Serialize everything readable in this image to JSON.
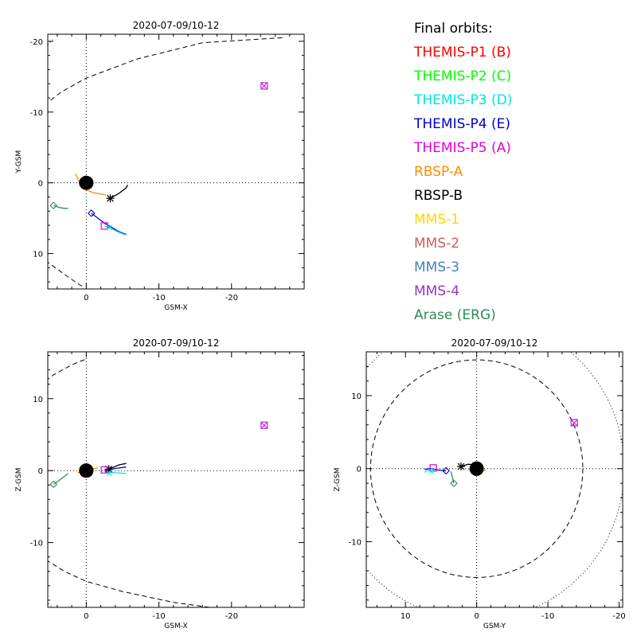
{
  "colors": {
    "axis": "#000000",
    "earth": "#000000",
    "magnetopause": "#000000",
    "legend_title": "#000000"
  },
  "legend": {
    "title": "Final orbits:",
    "items": [
      {
        "label": "THEMIS-P1 (B)",
        "color": "#ff0000"
      },
      {
        "label": "THEMIS-P2 (C)",
        "color": "#00ff00"
      },
      {
        "label": "THEMIS-P3 (D)",
        "color": "#00e5e5"
      },
      {
        "label": "THEMIS-P4 (E)",
        "color": "#0000cc"
      },
      {
        "label": "THEMIS-P5 (A)",
        "color": "#e000e0"
      },
      {
        "label": "RBSP-A",
        "color": "#ff8c00"
      },
      {
        "label": "RBSP-B",
        "color": "#000000"
      },
      {
        "label": "MMS-1",
        "color": "#ffd700"
      },
      {
        "label": "MMS-2",
        "color": "#cd5c5c"
      },
      {
        "label": "MMS-3",
        "color": "#4682b4"
      },
      {
        "label": "MMS-4",
        "color": "#9932cc"
      },
      {
        "label": "Arase (ERG)",
        "color": "#2e8b57"
      }
    ]
  },
  "chart_data": [
    {
      "type": "scatter",
      "title": "2020-07-09/10-12",
      "xlabel": "GSM-X",
      "ylabel": "Y-GSM",
      "xlim": [
        5.3,
        -30
      ],
      "ylim": [
        15,
        -21
      ],
      "xticks": [
        0,
        -10,
        -20
      ],
      "yticks": [
        10,
        0,
        -10,
        -20
      ],
      "earth": {
        "x": 0,
        "y": 0,
        "r": 1
      },
      "magnetopause": [
        [
          -27,
          -20.5
        ],
        [
          -16,
          -19.8
        ],
        [
          -7,
          -17.5
        ],
        [
          0,
          -14.8
        ],
        [
          3.5,
          -12.8
        ],
        [
          5.5,
          -11.2
        ],
        [
          6.5,
          -10.4
        ]
      ],
      "magnetopause_lower": [
        [
          6.5,
          10.3
        ],
        [
          4.8,
          11.6
        ],
        [
          2.5,
          13.3
        ],
        [
          0.5,
          14.7
        ]
      ],
      "bowshock": [
        [
          6.5,
          -18.2
        ],
        [
          5.4,
          -19.4
        ],
        [
          4.4,
          -20.5
        ]
      ],
      "tracks": [
        {
          "spacecraft": "RBSP-A",
          "points": [
            [
              1.5,
              -1.3
            ],
            [
              0.5,
              0.8
            ],
            [
              -1,
              1.4
            ],
            [
              -2.7,
              1.7
            ]
          ]
        },
        {
          "spacecraft": "RBSP-B",
          "points": [
            [
              -3.3,
              2.2
            ],
            [
              -4.5,
              1.5
            ],
            [
              -5.5,
              0.7
            ],
            [
              -5.7,
              0.3
            ]
          ]
        },
        {
          "spacecraft": "THEMIS-P4 (E)",
          "points": [
            [
              -0.7,
              4.3
            ],
            [
              -2.5,
              5.7
            ],
            [
              -4.5,
              6.9
            ],
            [
              -5.5,
              7.3
            ]
          ]
        },
        {
          "spacecraft": "THEMIS-P3 (D)",
          "points": [
            [
              -2.5,
              6.1
            ],
            [
              -3.5,
              6.5
            ],
            [
              -4.5,
              7
            ],
            [
              -5.5,
              7.4
            ]
          ]
        },
        {
          "spacecraft": "Arase (ERG)",
          "points": [
            [
              4.5,
              3.2
            ],
            [
              3.7,
              3.5
            ],
            [
              3,
              3.6
            ],
            [
              2.5,
              3.6
            ]
          ]
        }
      ],
      "points": [
        {
          "spacecraft": "RBSP-B",
          "marker": "asterisk",
          "x": -3.3,
          "y": 2.2
        },
        {
          "spacecraft": "THEMIS-P4 (E)",
          "marker": "diamond",
          "x": -0.7,
          "y": 4.3
        },
        {
          "spacecraft": "THEMIS-P5 (A)",
          "marker": "square",
          "x": -2.5,
          "y": 6.1
        },
        {
          "spacecraft": "THEMIS-P3 (D)",
          "marker": "cross",
          "x": -3.2,
          "y": 6.3
        },
        {
          "spacecraft": "Arase (ERG)",
          "marker": "diamond",
          "x": 4.5,
          "y": 3.2
        },
        {
          "spacecraft": "MMS-4",
          "marker": "square",
          "x": -24.5,
          "y": -13.7
        },
        {
          "spacecraft": "THEMIS-P5 (A)",
          "marker": "cross",
          "x": -24.5,
          "y": -13.7
        }
      ]
    },
    {
      "type": "scatter",
      "title": "2020-07-09/10-12",
      "xlabel": "GSM-X",
      "ylabel": "Z-GSM",
      "xlim": [
        5.3,
        -30
      ],
      "ylim": [
        -19,
        16.5
      ],
      "xticks": [
        0,
        -10,
        -20
      ],
      "yticks": [
        10,
        0,
        -10
      ],
      "earth": {
        "x": 0,
        "y": 0,
        "r": 1
      },
      "magnetopause": [
        [
          6.5,
          11.8
        ],
        [
          4.5,
          13.3
        ],
        [
          2,
          14.7
        ],
        [
          0,
          15.5
        ]
      ],
      "magnetopause_lower": [
        [
          6.5,
          -11.8
        ],
        [
          3,
          -14
        ],
        [
          0,
          -15.4
        ],
        [
          -5,
          -16.8
        ],
        [
          -12,
          -18.3
        ],
        [
          -17,
          -19
        ]
      ],
      "bowshock": [
        [
          6.3,
          -17.7
        ],
        [
          5.4,
          -18.3
        ],
        [
          4.6,
          -19
        ]
      ],
      "tracks": [
        {
          "spacecraft": "RBSP-A",
          "points": [
            [
              1.2,
              -0.3
            ],
            [
              -0.5,
              0.1
            ],
            [
              -1.6,
              0.4
            ]
          ]
        },
        {
          "spacecraft": "RBSP-B",
          "points": [
            [
              -3.1,
              0.2
            ],
            [
              -4.5,
              0.8
            ],
            [
              -5.5,
              1
            ]
          ]
        },
        {
          "spacecraft": "THEMIS-P4 (E)",
          "points": [
            [
              -2.5,
              0
            ],
            [
              -4,
              0.3
            ],
            [
              -5.5,
              0.5
            ]
          ]
        },
        {
          "spacecraft": "THEMIS-P3 (D)",
          "points": [
            [
              -2.5,
              -0.1
            ],
            [
              -4,
              -0.3
            ],
            [
              -5.5,
              -0.4
            ]
          ]
        },
        {
          "spacecraft": "Arase (ERG)",
          "points": [
            [
              4.5,
              -1.9
            ],
            [
              3.5,
              -1.2
            ],
            [
              2.5,
              -0.4
            ]
          ]
        }
      ],
      "points": [
        {
          "spacecraft": "RBSP-B",
          "marker": "asterisk",
          "x": -3.1,
          "y": 0.2
        },
        {
          "spacecraft": "THEMIS-P5 (A)",
          "marker": "square",
          "x": -2.5,
          "y": 0.1
        },
        {
          "spacecraft": "THEMIS-P3 (D)",
          "marker": "cross",
          "x": -3.2,
          "y": -0.4
        },
        {
          "spacecraft": "Arase (ERG)",
          "marker": "diamond",
          "x": 4.5,
          "y": -1.9
        },
        {
          "spacecraft": "MMS-4",
          "marker": "square",
          "x": -24.5,
          "y": 6.3
        },
        {
          "spacecraft": "THEMIS-P5 (A)",
          "marker": "cross",
          "x": -24.5,
          "y": 6.3
        }
      ]
    },
    {
      "type": "scatter",
      "title": "2020-07-09/10-12",
      "xlabel": "GSM-Y",
      "ylabel": "Z-GSM",
      "xlim": [
        15.5,
        -20.5
      ],
      "ylim": [
        -19,
        16
      ],
      "xticks": [
        10,
        0,
        -10,
        -20
      ],
      "yticks": [
        10,
        0,
        -10
      ],
      "earth": {
        "x": 0,
        "y": 0,
        "r": 1
      },
      "circle_dashed": {
        "cx": 0,
        "cy": 0,
        "r": 14.9
      },
      "circle_dotted": {
        "cx": 0,
        "cy": 0,
        "r": 20.7
      },
      "tracks": [
        {
          "spacecraft": "RBSP-A",
          "points": [
            [
              1.2,
              -0.1
            ],
            [
              0,
              -0.5
            ],
            [
              -1.3,
              -0.2
            ]
          ]
        },
        {
          "spacecraft": "RBSP-B",
          "points": [
            [
              2.2,
              0.3
            ],
            [
              1.2,
              0.6
            ],
            [
              0.2,
              0.5
            ]
          ]
        },
        {
          "spacecraft": "THEMIS-P4 (E)",
          "points": [
            [
              4.3,
              -0.3
            ],
            [
              5.3,
              -0.2
            ],
            [
              6.5,
              0
            ],
            [
              7.3,
              -0.1
            ]
          ]
        },
        {
          "spacecraft": "THEMIS-P3 (D)",
          "points": [
            [
              6.1,
              0.1
            ],
            [
              6.5,
              -0.2
            ],
            [
              7,
              -0.3
            ],
            [
              7.3,
              -0.5
            ]
          ]
        },
        {
          "spacecraft": "Arase (ERG)",
          "points": [
            [
              3.2,
              -2
            ],
            [
              3.4,
              -1.2
            ],
            [
              3.6,
              -0.4
            ]
          ]
        }
      ],
      "points": [
        {
          "spacecraft": "RBSP-B",
          "marker": "asterisk",
          "x": 2.2,
          "y": 0.3
        },
        {
          "spacecraft": "THEMIS-P4 (E)",
          "marker": "diamond",
          "x": 4.3,
          "y": -0.3
        },
        {
          "spacecraft": "THEMIS-P5 (A)",
          "marker": "square",
          "x": 6.1,
          "y": 0.1
        },
        {
          "spacecraft": "THEMIS-P3 (D)",
          "marker": "cross",
          "x": 6.3,
          "y": -0.4
        },
        {
          "spacecraft": "Arase (ERG)",
          "marker": "diamond",
          "x": 3.2,
          "y": -2
        },
        {
          "spacecraft": "MMS-4",
          "marker": "square",
          "x": -13.7,
          "y": 6.3
        },
        {
          "spacecraft": "THEMIS-P5 (A)",
          "marker": "cross",
          "x": -13.7,
          "y": 6.3
        }
      ]
    }
  ]
}
